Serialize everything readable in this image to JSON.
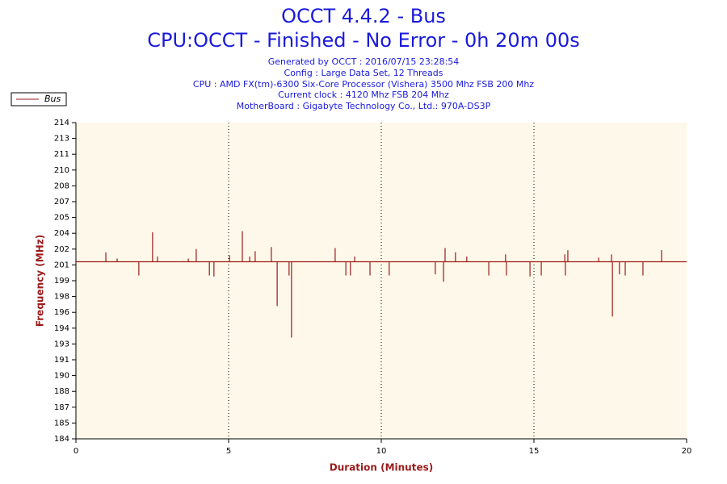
{
  "chart_data": {
    "type": "line",
    "title": "OCCT 4.4.2 - Bus",
    "subtitle": "CPU:OCCT - Finished - No Error - 0h 20m 00s",
    "info": [
      "Generated by OCCT : 2016/07/15 23:28:54",
      "Config : Large Data Set, 12 Threads",
      "CPU : AMD FX(tm)-6300 Six-Core Processor (Vishera) 3500 Mhz FSB 200 Mhz",
      "Current clock : 4120 Mhz FSB 204 Mhz",
      "MotherBoard : Gigabyte Technology Co., Ltd.: 970A-DS3P"
    ],
    "xlabel": "Duration (Minutes)",
    "ylabel": "Frequency (MHz)",
    "xlim": [
      0,
      20
    ],
    "xticks": [
      0,
      5,
      10,
      15,
      20
    ],
    "ylim": [
      184,
      214
    ],
    "yticks": [
      214,
      {
        "value": 212.5,
        "label": "213"
      },
      211,
      {
        "value": 209.5,
        "label": "210"
      },
      208,
      {
        "value": 206.5,
        "label": "207"
      },
      205,
      {
        "value": 203.5,
        "label": "204"
      },
      202,
      {
        "value": 200.5,
        "label": "201"
      },
      199,
      {
        "value": 197.5,
        "label": "198"
      },
      196,
      {
        "value": 194.5,
        "label": "194"
      },
      193,
      {
        "value": 191.5,
        "label": "191"
      },
      190,
      {
        "value": 188.5,
        "label": "188"
      },
      187,
      {
        "value": 185.5,
        "label": "185"
      },
      184
    ],
    "grid": "x",
    "legend": "top-left",
    "series": [
      {
        "name": "Bus",
        "color": "#9b1b1b",
        "x": [
          0,
          0.98,
          0.98,
          0.98,
          1.35,
          1.35,
          1.35,
          2.06,
          2.06,
          2.06,
          2.51,
          2.51,
          2.51,
          2.67,
          2.67,
          2.67,
          3.68,
          3.68,
          3.68,
          3.94,
          3.94,
          3.94,
          4.37,
          4.37,
          4.37,
          4.52,
          4.52,
          4.52,
          5.03,
          5.03,
          5.03,
          5.45,
          5.45,
          5.45,
          5.69,
          5.69,
          5.69,
          5.87,
          5.87,
          5.87,
          6.4,
          6.4,
          6.4,
          6.59,
          6.59,
          6.59,
          6.98,
          6.98,
          6.98,
          7.06,
          7.06,
          7.06,
          8.49,
          8.49,
          8.49,
          8.84,
          8.84,
          8.84,
          8.99,
          8.99,
          8.99,
          9.13,
          9.13,
          9.13,
          9.63,
          9.63,
          9.63,
          10.26,
          10.26,
          10.26,
          11.77,
          11.77,
          11.77,
          12.04,
          12.04,
          12.04,
          12.09,
          12.09,
          12.09,
          12.43,
          12.43,
          12.43,
          12.8,
          12.8,
          12.8,
          13.52,
          13.52,
          13.52,
          14.07,
          14.07,
          14.07,
          14.1,
          14.1,
          14.1,
          14.87,
          14.87,
          14.87,
          15.24,
          15.24,
          15.24,
          16.01,
          16.01,
          16.01,
          16.03,
          16.03,
          16.03,
          16.11,
          16.11,
          16.11,
          17.12,
          17.12,
          17.12,
          17.54,
          17.54,
          17.54,
          17.57,
          17.57,
          17.57,
          17.8,
          17.8,
          17.8,
          17.99,
          17.99,
          17.99,
          18.57,
          18.57,
          18.57,
          19.18,
          19.18,
          19.18,
          20
        ],
        "values": [
          200.8,
          200.8,
          201.7,
          200.8,
          200.8,
          201.1,
          200.8,
          200.8,
          199.5,
          200.8,
          200.8,
          203.6,
          200.8,
          200.8,
          201.3,
          200.8,
          200.8,
          201.1,
          200.8,
          200.8,
          202.0,
          200.8,
          200.8,
          199.5,
          200.8,
          200.8,
          199.4,
          200.8,
          200.8,
          201.4,
          200.8,
          200.8,
          203.7,
          200.8,
          200.8,
          201.3,
          200.8,
          200.8,
          201.8,
          200.8,
          200.8,
          202.2,
          200.8,
          200.8,
          196.6,
          200.8,
          200.8,
          199.5,
          200.8,
          200.8,
          193.6,
          200.8,
          200.8,
          202.1,
          200.8,
          200.8,
          199.5,
          200.8,
          200.8,
          199.5,
          200.8,
          200.8,
          201.3,
          200.8,
          200.8,
          199.5,
          200.8,
          200.8,
          199.5,
          200.8,
          200.8,
          199.6,
          200.8,
          200.8,
          198.9,
          200.8,
          200.8,
          202.1,
          200.8,
          200.8,
          201.7,
          200.8,
          200.8,
          201.3,
          200.8,
          200.8,
          199.5,
          200.8,
          200.8,
          201.5,
          200.8,
          200.8,
          199.5,
          200.8,
          200.8,
          199.4,
          200.8,
          200.8,
          199.5,
          200.8,
          200.8,
          201.5,
          200.8,
          200.8,
          199.5,
          200.8,
          200.8,
          201.9,
          200.8,
          200.8,
          201.2,
          200.8,
          200.8,
          201.5,
          200.8,
          200.8,
          195.6,
          200.8,
          200.8,
          199.6,
          200.8,
          200.8,
          199.5,
          200.8,
          200.8,
          199.5,
          200.8,
          200.8,
          201.9,
          200.8,
          200.8
        ]
      }
    ]
  }
}
